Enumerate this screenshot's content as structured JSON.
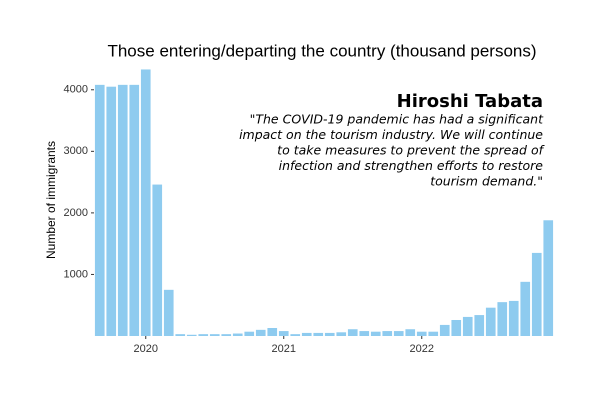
{
  "chart_data": {
    "type": "bar",
    "title": "Those entering/departing the country (thousand persons)",
    "y_label": "Number of immigrants",
    "categories": [
      null,
      null,
      null,
      null,
      "2020",
      null,
      null,
      null,
      null,
      null,
      null,
      null,
      null,
      null,
      null,
      null,
      "2021",
      null,
      null,
      null,
      null,
      null,
      null,
      null,
      null,
      null,
      null,
      null,
      "2022",
      null,
      null,
      null,
      null,
      null,
      null,
      null,
      null,
      null,
      null,
      null
    ],
    "values": [
      4080,
      4050,
      4080,
      4080,
      4330,
      2460,
      750,
      30,
      20,
      30,
      30,
      30,
      40,
      70,
      100,
      130,
      80,
      30,
      50,
      50,
      50,
      60,
      110,
      80,
      70,
      80,
      80,
      110,
      70,
      70,
      180,
      260,
      310,
      340,
      460,
      550,
      570,
      880,
      1350,
      1880
    ],
    "color": "#8ecbef",
    "ylim": [
      0,
      4500
    ],
    "yticks": [
      1000,
      2000,
      3000,
      4000
    ],
    "grid": false,
    "annotation": {
      "name": "Hiroshi Tabata",
      "lines": [
        "\"The COVID-19 pandemic has had a significant",
        "impact on the tourism industry. We will continue",
        "to take measures to prevent the spread of",
        "infection and strengthen efforts to restore",
        "tourism demand.\""
      ]
    }
  }
}
